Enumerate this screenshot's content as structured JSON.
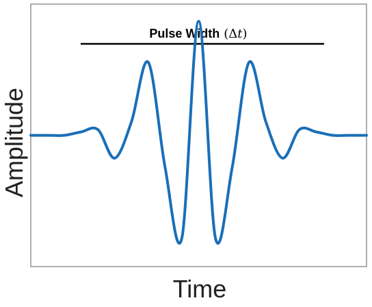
{
  "chart_data": {
    "type": "line",
    "title": "",
    "xlabel": "Time",
    "ylabel": "Amplitude",
    "annotation": {
      "text": "Pulse Width",
      "symbol": "(Δ",
      "symbol_var": "t",
      "symbol_close": ")"
    },
    "xlim": [
      0,
      1
    ],
    "ylim": [
      -1.15,
      1.15
    ],
    "grid": false,
    "series": [
      {
        "color": "#1a6fb8",
        "x": [
          0.0,
          0.05,
          0.1,
          0.15,
          0.2,
          0.25,
          0.3,
          0.35,
          0.4,
          0.45,
          0.5,
          0.55,
          0.6,
          0.65,
          0.7,
          0.75,
          0.8,
          0.85,
          0.9,
          0.95,
          1.0
        ],
        "y": [
          0.0,
          0.0,
          0.0,
          0.03,
          0.05,
          -0.2,
          0.12,
          0.64,
          -0.28,
          -0.9,
          1.0,
          -0.9,
          -0.28,
          0.64,
          0.12,
          -0.2,
          0.05,
          0.03,
          0.0,
          0.0,
          0.0
        ]
      }
    ]
  }
}
